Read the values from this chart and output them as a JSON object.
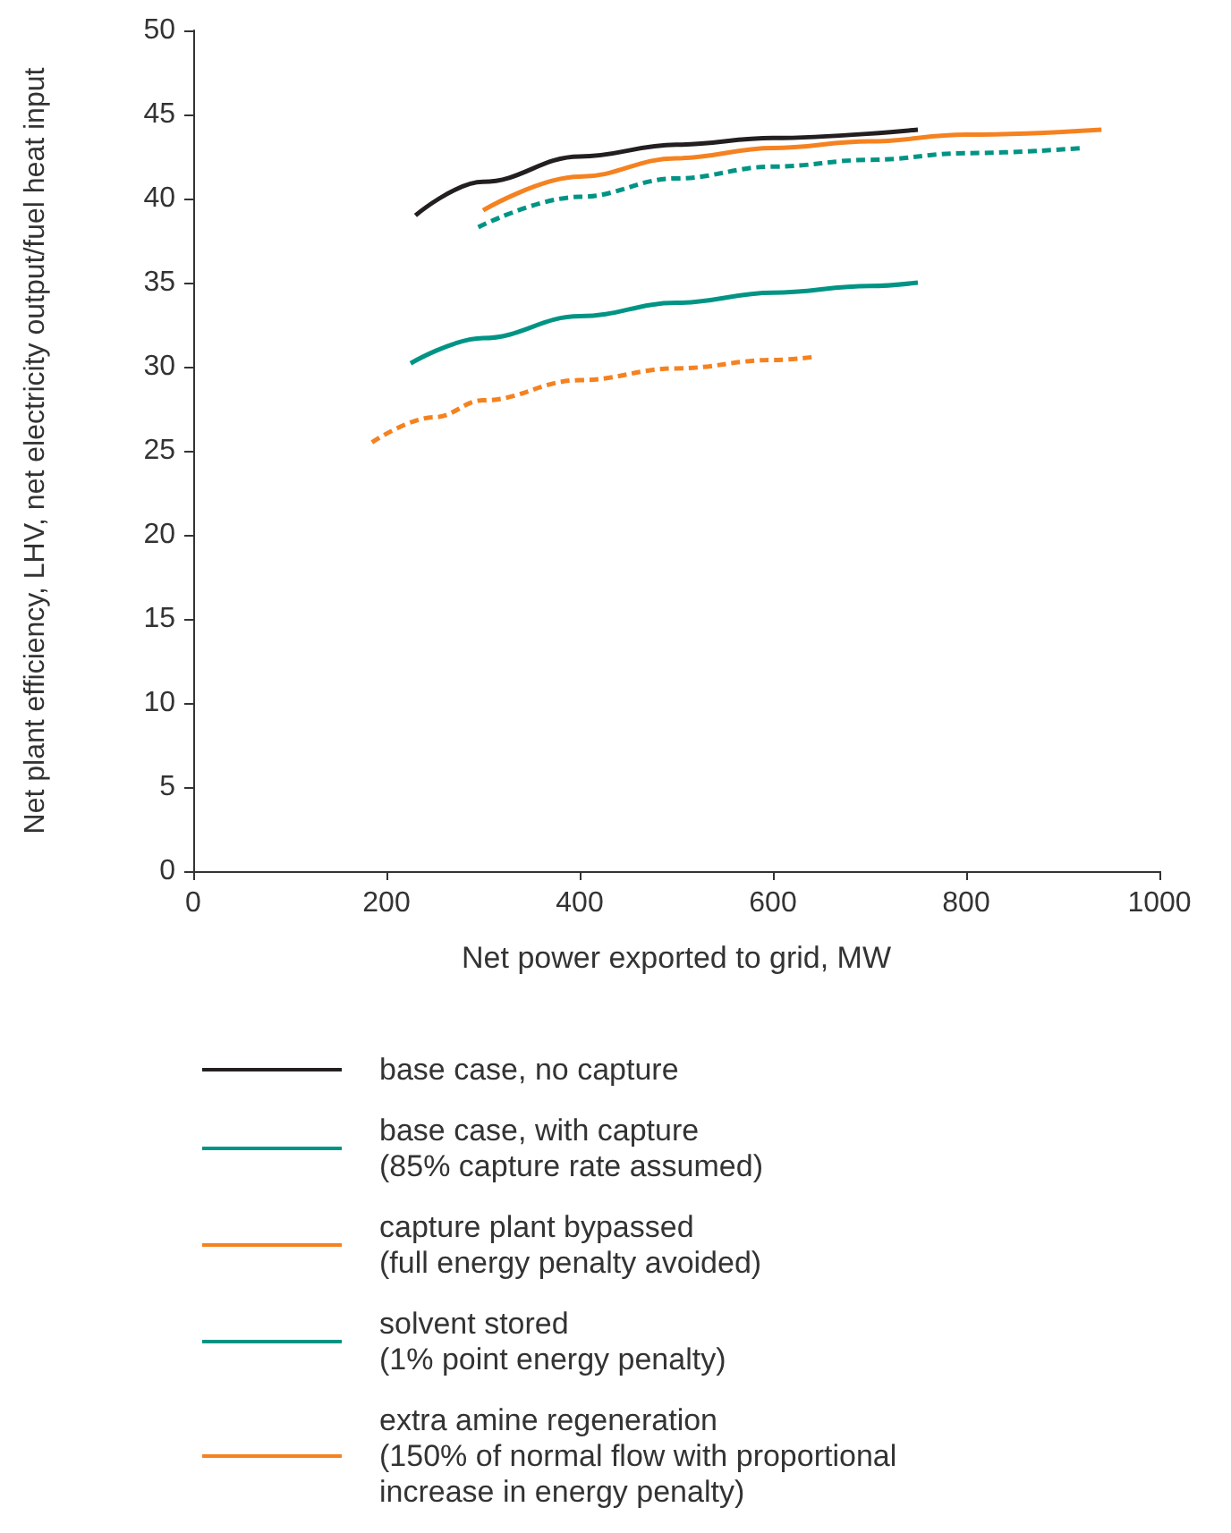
{
  "chart_data": {
    "type": "line",
    "xlabel": "Net power exported to grid, MW",
    "ylabel": "Net plant efficiency, LHV, net electricity output/fuel heat input",
    "xlim": [
      0,
      1000
    ],
    "xticks": [
      0,
      200,
      400,
      600,
      800,
      1000
    ],
    "ylim": [
      0,
      50
    ],
    "yticks": [
      0,
      5,
      10,
      15,
      20,
      25,
      30,
      35,
      40,
      45,
      50
    ],
    "grid": false,
    "legend": "bottom",
    "marker": "none",
    "series": [
      {
        "name": "base case, no capture",
        "color": "#231f20",
        "line_style": "solid",
        "x": [
          230,
          300,
          400,
          500,
          600,
          750
        ],
        "values": [
          39.0,
          41.0,
          42.5,
          43.2,
          43.6,
          44.1
        ]
      },
      {
        "name": "base case, with capture (85% capture rate assumed)",
        "color": "#009485",
        "line_style": "solid",
        "x": [
          225,
          300,
          400,
          500,
          600,
          700,
          750
        ],
        "values": [
          30.2,
          31.7,
          33.0,
          33.8,
          34.4,
          34.8,
          35.0
        ]
      },
      {
        "name": "capture plant bypassed (full energy penalty avoided)",
        "color": "#f58220",
        "line_style": "solid",
        "x": [
          300,
          400,
          500,
          600,
          700,
          800,
          940
        ],
        "values": [
          39.3,
          41.3,
          42.4,
          43.0,
          43.4,
          43.8,
          44.1
        ]
      },
      {
        "name": "solvent stored (1% point energy penalty)",
        "color": "#009485",
        "line_style": "dashed",
        "x": [
          295,
          400,
          500,
          600,
          700,
          800,
          920
        ],
        "values": [
          38.3,
          40.1,
          41.2,
          41.9,
          42.3,
          42.7,
          43.0
        ]
      },
      {
        "name": "extra amine regeneration (150% of normal flow with proportional increase in energy penalty)",
        "color": "#f58220",
        "line_style": "dashed",
        "x": [
          185,
          250,
          300,
          400,
          500,
          600,
          645
        ],
        "values": [
          25.5,
          27.0,
          28.0,
          29.2,
          29.9,
          30.4,
          30.6
        ]
      }
    ]
  }
}
